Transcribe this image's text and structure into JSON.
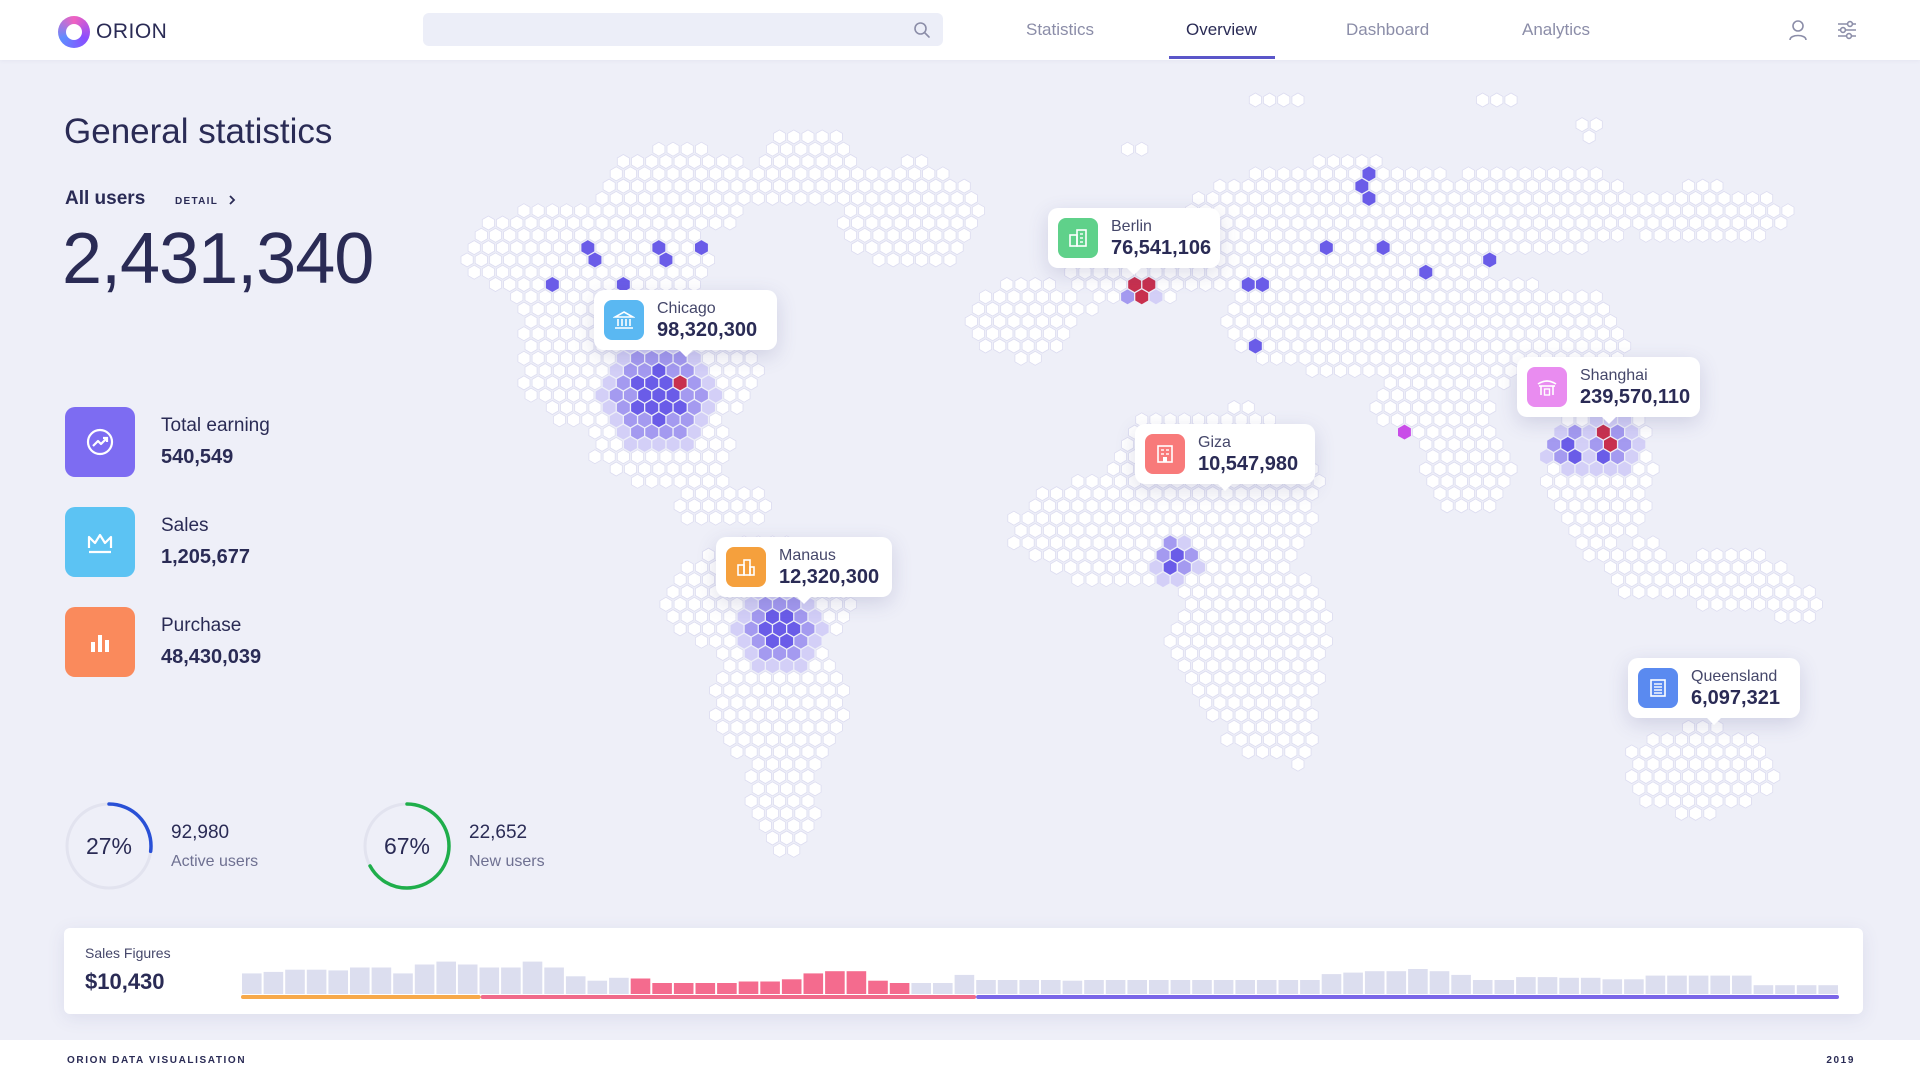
{
  "brand": {
    "name": "ORION"
  },
  "search": {
    "placeholder": ""
  },
  "nav": {
    "items": [
      {
        "label": "Statistics",
        "active": false
      },
      {
        "label": "Overview",
        "active": true
      },
      {
        "label": "Dashboard",
        "active": false
      },
      {
        "label": "Analytics",
        "active": false
      }
    ]
  },
  "header_icons": [
    "user-icon",
    "settings-sliders-icon"
  ],
  "page": {
    "title": "General statistics"
  },
  "all_users": {
    "label": "All users",
    "detail_link": "DETAIL",
    "value": "2,431,340"
  },
  "stats": [
    {
      "label": "Total earning",
      "value": "540,549",
      "icon": "trending-up-icon",
      "color": "#7d6cf2"
    },
    {
      "label": "Sales",
      "value": "1,205,677",
      "icon": "crown-icon",
      "color": "#5cc3f3"
    },
    {
      "label": "Purchase",
      "value": "48,430,039",
      "icon": "bar-chart-icon",
      "color": "#fa8a5c"
    }
  ],
  "rings": [
    {
      "percent_label": "27%",
      "percent": 27,
      "value": "92,980",
      "label": "Active users",
      "color": "#2950d6"
    },
    {
      "percent_label": "67%",
      "percent": 67,
      "value": "22,652",
      "label": "New users",
      "color": "#1fae4b"
    }
  ],
  "callouts": [
    {
      "city": "Chicago",
      "value": "98,320,300",
      "icon": "bank-icon",
      "color": "#5ab8f2"
    },
    {
      "city": "Berlin",
      "value": "76,541,106",
      "icon": "building-icon",
      "color": "#5fd18a"
    },
    {
      "city": "Shanghai",
      "value": "239,570,110",
      "icon": "temple-icon",
      "color": "#e98cf0"
    },
    {
      "city": "Giza",
      "value": "10,547,980",
      "icon": "office-icon",
      "color": "#f87a7a"
    },
    {
      "city": "Manaus",
      "value": "12,320,300",
      "icon": "city-icon",
      "color": "#f5a03d"
    },
    {
      "city": "Queensland",
      "value": "6,097,321",
      "icon": "apartment-icon",
      "color": "#5a8af0"
    }
  ],
  "sales": {
    "label": "Sales Figures",
    "value": "$10,430",
    "colors": {
      "neutral": "#dcdeef",
      "highlight": "#f46b8e",
      "line_start": "#f7a94a",
      "line_mid": "#f06a8a",
      "line_end": "#7a66e8"
    },
    "bars": [
      0.28,
      0.3,
      0.33,
      0.33,
      0.32,
      0.36,
      0.36,
      0.28,
      0.4,
      0.44,
      0.4,
      0.36,
      0.36,
      0.44,
      0.36,
      0.24,
      0.18,
      0.22,
      0.21,
      0.15,
      0.15,
      0.15,
      0.15,
      0.17,
      0.17,
      0.2,
      0.28,
      0.31,
      0.31,
      0.18,
      0.15,
      0.15,
      0.15,
      0.26,
      0.19,
      0.19,
      0.19,
      0.19,
      0.18,
      0.19,
      0.19,
      0.19,
      0.19,
      0.19,
      0.19,
      0.19,
      0.19,
      0.19,
      0.19,
      0.19,
      0.27,
      0.29,
      0.31,
      0.31,
      0.34,
      0.31,
      0.26,
      0.19,
      0.19,
      0.23,
      0.23,
      0.22,
      0.22,
      0.2,
      0.2,
      0.25,
      0.25,
      0.25,
      0.25,
      0.25,
      0.12,
      0.12,
      0.12,
      0.12
    ],
    "highlight_range": [
      18,
      30
    ],
    "line_split": [
      0.15,
      0.46
    ]
  },
  "footer": {
    "left": "ORION DATA VISUALISATION",
    "right": "2019"
  }
}
